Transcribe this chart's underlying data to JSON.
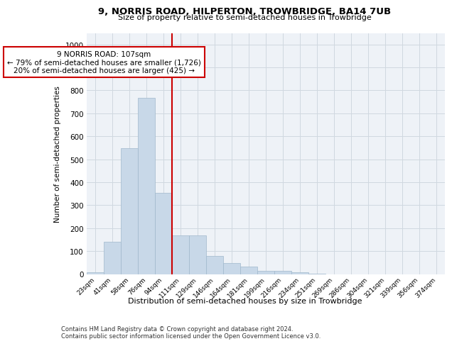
{
  "title1": "9, NORRIS ROAD, HILPERTON, TROWBRIDGE, BA14 7UB",
  "title2": "Size of property relative to semi-detached houses in Trowbridge",
  "xlabel": "Distribution of semi-detached houses by size in Trowbridge",
  "ylabel": "Number of semi-detached properties",
  "categories": [
    "23sqm",
    "41sqm",
    "58sqm",
    "76sqm",
    "94sqm",
    "111sqm",
    "129sqm",
    "146sqm",
    "164sqm",
    "181sqm",
    "199sqm",
    "216sqm",
    "234sqm",
    "251sqm",
    "269sqm",
    "286sqm",
    "304sqm",
    "321sqm",
    "339sqm",
    "356sqm",
    "374sqm"
  ],
  "bar_values": [
    8,
    140,
    548,
    768,
    355,
    168,
    168,
    80,
    48,
    33,
    15,
    15,
    8,
    3,
    0,
    0,
    0,
    0,
    0,
    0,
    0
  ],
  "bar_color": "#c8d8e8",
  "bar_edgecolor": "#a0b8cc",
  "vline_x": 4.5,
  "vline_color": "#cc0000",
  "annotation_text": "9 NORRIS ROAD: 107sqm\n← 79% of semi-detached houses are smaller (1,726)\n20% of semi-detached houses are larger (425) →",
  "annotation_box_color": "#ffffff",
  "annotation_box_edgecolor": "#cc0000",
  "ylim": [
    0,
    1050
  ],
  "yticks": [
    0,
    100,
    200,
    300,
    400,
    500,
    600,
    700,
    800,
    900,
    1000
  ],
  "grid_color": "#d0d8e0",
  "background_color": "#eef2f7",
  "footer1": "Contains HM Land Registry data © Crown copyright and database right 2024.",
  "footer2": "Contains public sector information licensed under the Open Government Licence v3.0."
}
